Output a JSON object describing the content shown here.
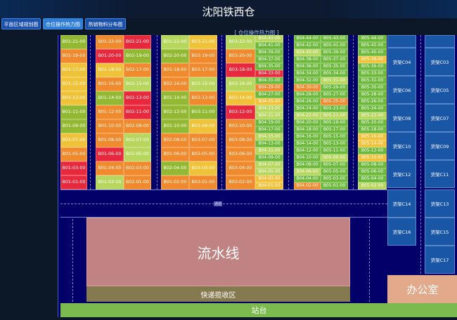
{
  "title": "沈阳铁西仓",
  "nav": [
    {
      "label": "平面区域规划图",
      "active": false
    },
    {
      "label": "仓位操作热力图",
      "active": true
    },
    {
      "label": "热销物料分布图",
      "active": false
    }
  ],
  "map_title": "[ 仓位操作热力图 ]",
  "aisle_label": "通道",
  "heat_colors": {
    "R": "#e8283c",
    "O": "#f08a2c",
    "Y": "#f0c238",
    "LG": "#b6d65c",
    "G": "#6cb83a",
    "OG": "#93b832"
  },
  "columns": [
    {
      "cells": [
        [
          "B01-21-00",
          "OG"
        ],
        [
          "B01-19-00",
          "O"
        ],
        [
          "B01-17-00",
          "Y"
        ],
        [
          "B01-15-00",
          "Y"
        ],
        [
          "B01-13-00",
          "Y"
        ],
        [
          "B01-11-00",
          "OG"
        ],
        [
          "B01-09-00",
          "OG"
        ],
        [
          "B01-07-00",
          "Y"
        ],
        [
          "B01-05-00",
          "O"
        ],
        [
          "B01-03-00",
          "R"
        ],
        [
          "B01-01-00",
          "R"
        ]
      ]
    },
    {
      "cells": [
        [
          "B01-22-00",
          "O"
        ],
        [
          "B01-20-00",
          "R"
        ],
        [
          "B01-18-00",
          "Y"
        ],
        [
          "B01-16-00",
          "O"
        ],
        [
          "B01-14-00",
          "OG"
        ],
        [
          "B01-12-00",
          "O"
        ],
        [
          "B01-10-00",
          "O"
        ],
        [
          "B01-08-00",
          "O"
        ],
        [
          "B01-06-00",
          "R"
        ],
        [
          "B01-04-00",
          "O"
        ],
        [
          "B01-02-00",
          "LG"
        ]
      ]
    },
    {
      "cells": [
        [
          "B02-21-00",
          "R"
        ],
        [
          "B02-19-00",
          "OG"
        ],
        [
          "B02-17-00",
          "O"
        ],
        [
          "B02-15-00",
          "LG"
        ],
        [
          "B02-13-00",
          "R"
        ],
        [
          "B02-11-00",
          "R"
        ],
        [
          "B02-09-00",
          "O"
        ],
        [
          "B02-07-00",
          "LG"
        ],
        [
          "B02-05-00",
          "LG"
        ],
        [
          "B02-03-00",
          "O"
        ],
        [
          "B02-01-00",
          "O"
        ]
      ]
    },
    {
      "cells": [
        [
          "B01-22-00",
          "LG"
        ],
        [
          "B02-20-00",
          "OG"
        ],
        [
          "B01-18-00",
          "O"
        ],
        [
          "B02-16-00",
          "O"
        ],
        [
          "B01-14-00",
          "OG"
        ],
        [
          "B02-12-00",
          "OG"
        ],
        [
          "B01-10-00",
          "OG"
        ],
        [
          "B02-08-00",
          "O"
        ],
        [
          "B01-06-00",
          "O"
        ],
        [
          "B02-04-00",
          "OG"
        ],
        [
          "B01-02-00",
          "O"
        ]
      ]
    },
    {
      "cells": [
        [
          "B03-21-00",
          "Y"
        ],
        [
          "B03-19-00",
          "O"
        ],
        [
          "B03-17-00",
          "O"
        ],
        [
          "B03-15-00",
          "LG"
        ],
        [
          "B03-13-00",
          "O"
        ],
        [
          "B03-11-00",
          "OG"
        ],
        [
          "B03-09-00",
          "Y"
        ],
        [
          "B03-07-00",
          "O"
        ],
        [
          "B03-05-00",
          "O"
        ],
        [
          "B03-03-00",
          "Y"
        ],
        [
          "B03-01-00",
          "O"
        ]
      ]
    },
    {
      "cells": [
        [
          "B03-22-00",
          "LG"
        ],
        [
          "B03-20-00",
          "O"
        ],
        [
          "B03-18-00",
          "R"
        ],
        [
          "B03-16-00",
          "LG"
        ],
        [
          "B03-14-00",
          "Y"
        ],
        [
          "B03-12-00",
          "R"
        ],
        [
          "B03-10-00",
          "O"
        ],
        [
          "B03-08-00",
          "O"
        ],
        [
          "B03-06-00",
          "O"
        ],
        [
          "B03-04-00",
          "O"
        ],
        [
          "B03-02-00",
          "O"
        ]
      ]
    },
    {
      "cells": [
        [
          "B04-43-00",
          "LG"
        ],
        [
          "B04-41-00",
          "G"
        ],
        [
          "B04-39-00",
          "G"
        ],
        [
          "B04-37-00",
          "G"
        ],
        [
          "B04-35-00",
          "G"
        ],
        [
          "B04-33-00",
          "R"
        ],
        [
          "B04-31-00",
          "G"
        ],
        [
          "B04-29-00",
          "O"
        ],
        [
          "B04-27-00",
          "G"
        ],
        [
          "B04-25-00",
          "Y"
        ],
        [
          "B04-23-00",
          "LG"
        ],
        [
          "B04-21-00",
          "LG"
        ],
        [
          "B04-19-00",
          "G"
        ],
        [
          "B04-17-00",
          "G"
        ],
        [
          "B04-15-00",
          "LG"
        ],
        [
          "B04-13-00",
          "G"
        ],
        [
          "B04-11-00",
          "LG"
        ],
        [
          "B04-09-00",
          "G"
        ],
        [
          "B04-07-00",
          "LG"
        ],
        [
          "B04-05-00",
          "LG"
        ],
        [
          "B04-03-00",
          "Y"
        ],
        [
          "B04-01-00",
          "Y"
        ]
      ]
    },
    {
      "cells": [
        [
          "B04-44-00",
          "G"
        ],
        [
          "B04-42-00",
          "G"
        ],
        [
          "B04-40-00",
          "LG"
        ],
        [
          "B04-38-00",
          "G"
        ],
        [
          "B04-36-00",
          "G"
        ],
        [
          "B04-34-00",
          "G"
        ],
        [
          "B04-32-00",
          "G"
        ],
        [
          "B04-30-00",
          "O"
        ],
        [
          "B04-28-00",
          "G"
        ],
        [
          "B04-26-00",
          "G"
        ],
        [
          "B04-24-00",
          "G"
        ],
        [
          "B04-22-00",
          "LG"
        ],
        [
          "B04-20-00",
          "G"
        ],
        [
          "B04-18-00",
          "G"
        ],
        [
          "B04-16-00",
          "G"
        ],
        [
          "B04-14-00",
          "G"
        ],
        [
          "B04-12-00",
          "G"
        ],
        [
          "B04-10-00",
          "G"
        ],
        [
          "B04-08-00",
          "G"
        ],
        [
          "B04-06-00",
          "LG"
        ],
        [
          "B04-04-00",
          "G"
        ],
        [
          "B04-02-00",
          "O"
        ]
      ]
    },
    {
      "cells": [
        [
          "B05-43-00",
          "G"
        ],
        [
          "B05-41-00",
          "G"
        ],
        [
          "B05-39-00",
          "G"
        ],
        [
          "B05-37-00",
          "G"
        ],
        [
          "B05-35-00",
          "G"
        ],
        [
          "B05-34-00",
          "G"
        ],
        [
          "B05-31-00",
          "LG"
        ],
        [
          "B05-29-00",
          "G"
        ],
        [
          "B05-27-00",
          "G"
        ],
        [
          "B05-25-00",
          "O"
        ],
        [
          "B05-23-00",
          "G"
        ],
        [
          "B05-21-00",
          "LG"
        ],
        [
          "B05-19-00",
          "G"
        ],
        [
          "B05-17-00",
          "G"
        ],
        [
          "B05-15-00",
          "G"
        ],
        [
          "B05-13-00",
          "G"
        ],
        [
          "B05-11-00",
          "G"
        ],
        [
          "B05-09-00",
          "LG"
        ],
        [
          "B05-07-00",
          "G"
        ],
        [
          "B05-05-00",
          "G"
        ],
        [
          "B05-03-00",
          "G"
        ],
        [
          "B05-01-00",
          "G"
        ]
      ]
    },
    {
      "cells": [
        [
          "B05-44-00",
          "G"
        ],
        [
          "B05-42-00",
          "G"
        ],
        [
          "B05-40-00",
          "G"
        ],
        [
          "B05-38-00",
          "Y"
        ],
        [
          "B05-36-00",
          "G"
        ],
        [
          "B05-33-00",
          "G"
        ],
        [
          "B05-32-00",
          "G"
        ],
        [
          "B05-30-00",
          "G"
        ],
        [
          "B05-28-00",
          "G"
        ],
        [
          "B05-26-00",
          "G"
        ],
        [
          "B05-24-00",
          "G"
        ],
        [
          "B05-22-00",
          "LG"
        ],
        [
          "B05-20-00",
          "G"
        ],
        [
          "B05-18-00",
          "G"
        ],
        [
          "B05-16-00",
          "Y"
        ],
        [
          "B05-14-00",
          "Y"
        ],
        [
          "B05-12-00",
          "G"
        ],
        [
          "B05-10-00",
          "Y"
        ],
        [
          "B05-08-00",
          "G"
        ],
        [
          "B05-06-00",
          "G"
        ],
        [
          "B05-04-00",
          "G"
        ],
        [
          "B05-02-00",
          "LG"
        ]
      ]
    }
  ],
  "racks_left": [
    "",
    "货架C04",
    "货架C06",
    "货架C08",
    "货架C10",
    "货架C12",
    "货架C14",
    "货架C16"
  ],
  "racks_right": [
    "",
    "货架C03",
    "货架C05",
    "货架C07",
    "货架C09",
    "货架C11",
    "货架C13",
    "货架C15",
    "货架C17"
  ],
  "zones": {
    "assembly_line": "流水线",
    "express_pickup": "快递揽收区",
    "platform": "站台",
    "office": "办公室"
  }
}
